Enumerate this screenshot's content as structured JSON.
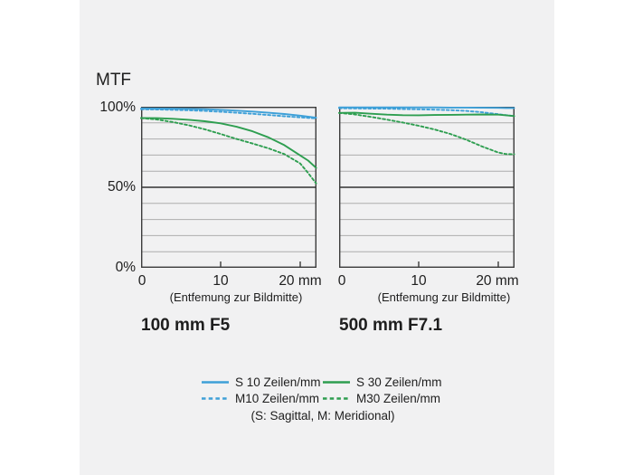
{
  "title": "MTF",
  "y_axis": {
    "labels": [
      "100%",
      "50%",
      "0%"
    ]
  },
  "x_axis": {
    "labels": [
      "0",
      "10",
      "20 mm"
    ],
    "caption": "(Entfemung zur Bildmitte)"
  },
  "colors": {
    "panel_bg": "#f1f1f2",
    "blue": "#3ea0d8",
    "green": "#2e9e50",
    "grid": "#adadad",
    "half_line": "#4d4d4d",
    "frame": "#3b3b3b",
    "text": "#1e1e1e"
  },
  "chart_data": [
    {
      "type": "line",
      "title": "100 mm F5",
      "xlabel": "(Entfemung zur Bildmitte)",
      "ylabel": "MTF",
      "xlim": [
        0,
        22
      ],
      "ylim": [
        0,
        100
      ],
      "grid": true,
      "x": [
        0,
        2,
        4,
        6,
        8,
        10,
        12,
        14,
        16,
        18,
        20,
        21,
        22
      ],
      "series": [
        {
          "name": "S 10 Zeilen/mm",
          "style": "solid",
          "color": "#3ea0d8",
          "values": [
            99.0,
            98.9,
            98.8,
            98.7,
            98.5,
            98.1,
            97.6,
            97.0,
            96.3,
            95.5,
            94.5,
            93.9,
            93.2
          ]
        },
        {
          "name": "M10 Zeilen/mm",
          "style": "dashed",
          "color": "#3ea0d8",
          "values": [
            98.4,
            98.3,
            98.1,
            97.8,
            97.4,
            96.9,
            96.3,
            95.6,
            94.9,
            94.1,
            93.4,
            93.1,
            92.8
          ]
        },
        {
          "name": "S 30 Zeilen/mm",
          "style": "solid",
          "color": "#2e9e50",
          "values": [
            93.0,
            92.9,
            92.5,
            91.9,
            91.0,
            89.7,
            87.6,
            84.8,
            81.0,
            76.2,
            69.8,
            66.6,
            62.0
          ]
        },
        {
          "name": "M30 Zeilen/mm",
          "style": "dashed",
          "color": "#2e9e50",
          "values": [
            93.0,
            92.1,
            90.5,
            88.5,
            86.0,
            83.1,
            80.0,
            77.2,
            74.2,
            70.6,
            64.8,
            58.8,
            52.4
          ]
        }
      ]
    },
    {
      "type": "line",
      "title": "500 mm F7.1",
      "xlabel": "(Entfemung zur Bildmitte)",
      "ylabel": "MTF",
      "xlim": [
        0,
        22
      ],
      "ylim": [
        0,
        100
      ],
      "grid": true,
      "x": [
        0,
        2,
        4,
        6,
        8,
        10,
        12,
        14,
        16,
        18,
        20,
        21,
        22
      ],
      "series": [
        {
          "name": "S 10 Zeilen/mm",
          "style": "solid",
          "color": "#3ea0d8",
          "values": [
            99.6,
            99.6,
            99.6,
            99.6,
            99.6,
            99.6,
            99.6,
            99.5,
            99.5,
            99.4,
            99.3,
            99.2,
            99.2
          ]
        },
        {
          "name": "M10 Zeilen/mm",
          "style": "dashed",
          "color": "#3ea0d8",
          "values": [
            99.1,
            99.0,
            98.9,
            98.8,
            98.6,
            98.4,
            98.2,
            97.9,
            97.4,
            96.6,
            95.4,
            94.8,
            94.2
          ]
        },
        {
          "name": "S 30 Zeilen/mm",
          "style": "solid",
          "color": "#2e9e50",
          "values": [
            96.2,
            96.3,
            95.7,
            95.1,
            94.8,
            94.7,
            94.9,
            95.0,
            95.1,
            95.2,
            95.1,
            94.7,
            94.2
          ]
        },
        {
          "name": "M30 Zeilen/mm",
          "style": "dashed",
          "color": "#2e9e50",
          "values": [
            96.2,
            95.2,
            93.7,
            92.0,
            90.2,
            88.2,
            85.9,
            83.1,
            79.5,
            75.3,
            71.6,
            70.6,
            70.5
          ]
        }
      ]
    }
  ],
  "legend": {
    "items": [
      {
        "label": "S 10 Zeilen/mm",
        "color": "#3ea0d8",
        "style": "solid"
      },
      {
        "label": "S 30 Zeilen/mm",
        "color": "#2e9e50",
        "style": "solid"
      },
      {
        "label": "M10 Zeilen/mm",
        "color": "#3ea0d8",
        "style": "dashed"
      },
      {
        "label": "M30 Zeilen/mm",
        "color": "#2e9e50",
        "style": "dashed"
      }
    ],
    "note": "(S: Sagittal, M: Meridional)"
  }
}
